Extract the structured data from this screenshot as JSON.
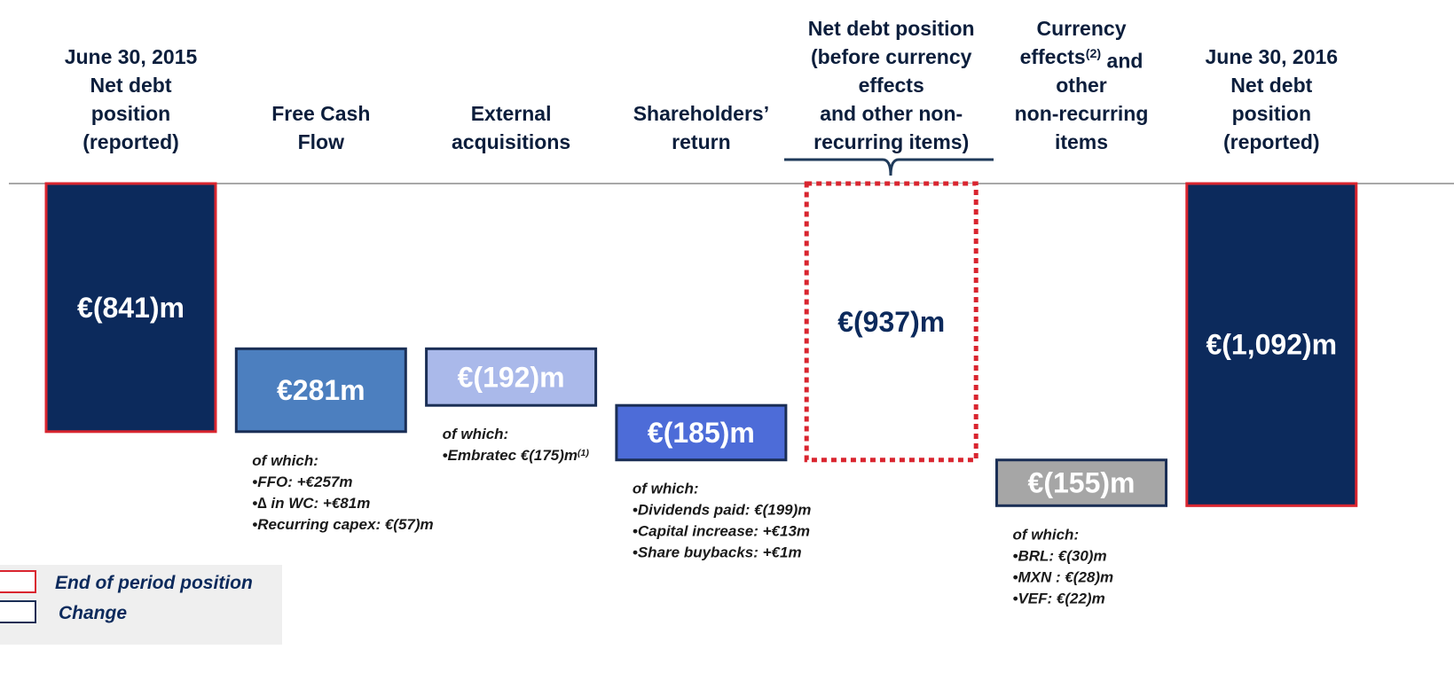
{
  "chart_data": {
    "type": "waterfall",
    "categories": [
      [
        "June 30, 2015",
        "Net debt",
        "position",
        "(reported)"
      ],
      [
        "Free Cash",
        "Flow"
      ],
      [
        "External",
        "acquisitions"
      ],
      [
        "Shareholders’",
        "return"
      ],
      [
        "Net debt position",
        "(before currency",
        "effects",
        "and other non-",
        "recurring items)"
      ],
      [
        "Currency",
        [
          {
            "t": "effects",
            "sup": false
          },
          {
            "t": "(2)",
            "sup": true
          },
          {
            "t": " and",
            "sup": false
          }
        ],
        "other",
        "non-recurring",
        "items"
      ],
      [
        "June 30, 2016",
        "Net debt",
        "position",
        "(reported)"
      ]
    ],
    "values": [
      -841,
      281,
      -192,
      -185,
      -937,
      -155,
      -1092
    ],
    "value_labels": [
      "€(841)m",
      "€281m",
      "€(192)m",
      "€(185)m",
      "€(937)m",
      "€(155)m",
      "€(1,092)m"
    ],
    "measure": [
      "absolute",
      "relative",
      "relative",
      "relative",
      "total",
      "relative",
      "total"
    ],
    "colors": [
      "#0c2a5c",
      "#4c7fbf",
      "#aab9ea",
      "#4d6cd8",
      "#ffffff",
      "#a6a6a6",
      "#0c2a5c"
    ],
    "border_colors": [
      "#d9252f",
      "#1a2e55",
      "#1a2e55",
      "#1a2e55",
      "#d9252f",
      "#1a2e55",
      "#d9252f"
    ],
    "dashed": [
      false,
      false,
      false,
      false,
      true,
      false,
      false
    ],
    "label_colors": [
      "#ffffff",
      "#ffffff",
      "#ffffff",
      "#ffffff",
      "#0c2a5c",
      "#ffffff",
      "#ffffff"
    ],
    "notes": [
      null,
      [
        "of which:",
        "•FFO: +€257m",
        "•∆ in WC: +€81m",
        "•Recurring capex: €(57)m"
      ],
      [
        "of which:",
        [
          {
            "t": "•Embratec €(175)m",
            "sup": false
          },
          {
            "t": "(1)",
            "sup": true
          }
        ]
      ],
      [
        "of which:",
        "•Dividends paid: €(199)m",
        "•Capital increase: +€13m",
        "•Share buybacks: +€1m"
      ],
      null,
      [
        "of which:",
        "•BRL: €(30)m",
        "•MXN : €(28)m",
        "•VEF: €(22)m"
      ],
      null
    ],
    "legend": [
      {
        "name": "End of period position",
        "color": "#d9252f"
      },
      {
        "name": "Change",
        "color": "#1a2e55"
      }
    ]
  }
}
